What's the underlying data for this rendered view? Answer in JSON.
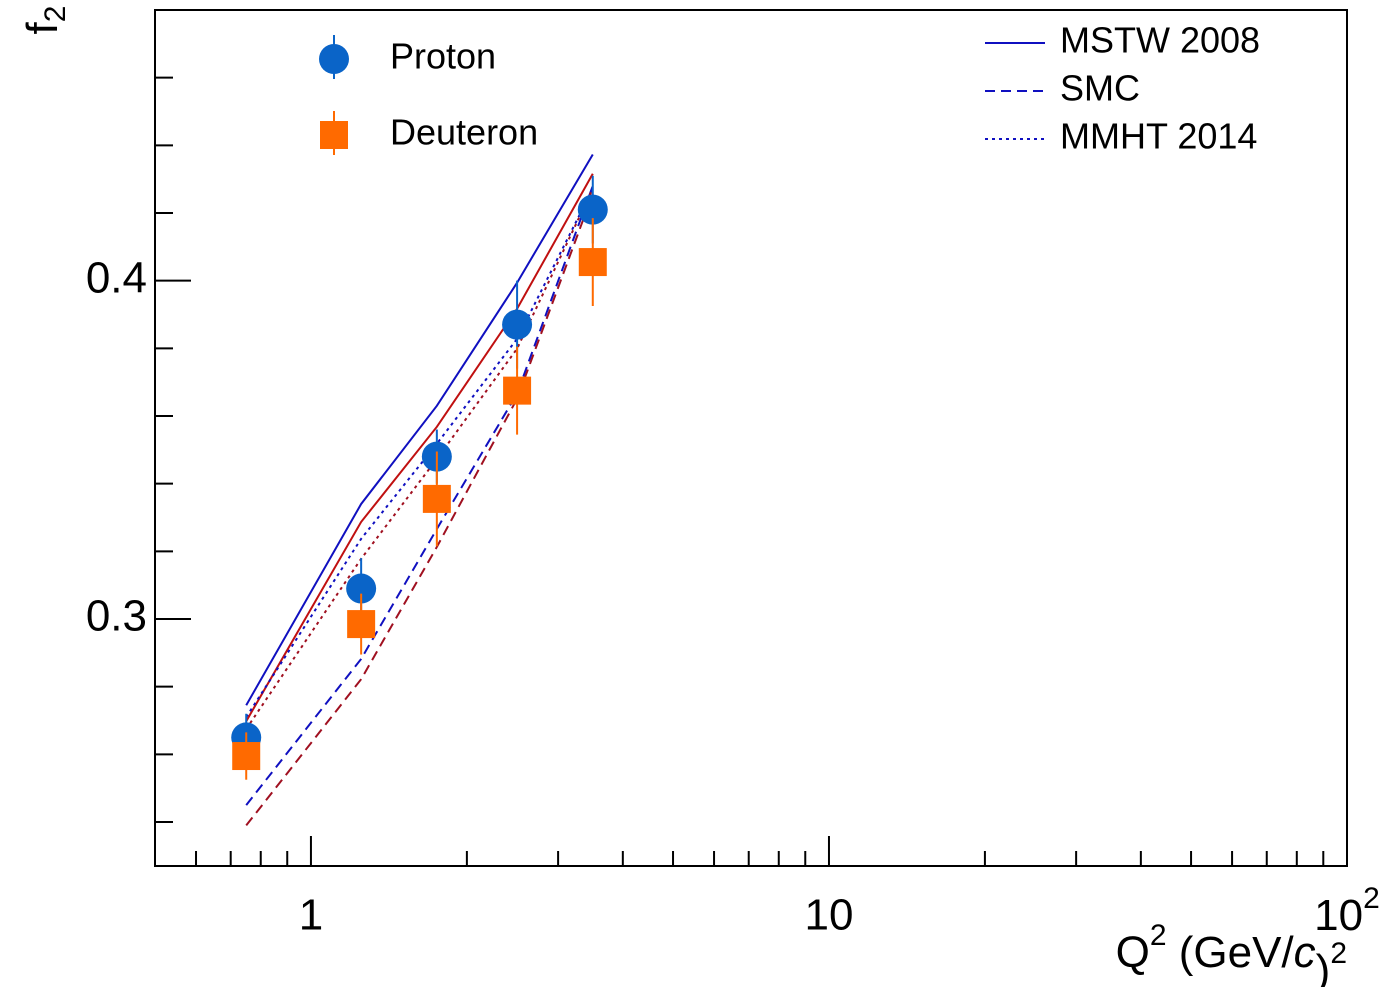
{
  "chart_data": {
    "type": "scatter",
    "ylabel": [
      "f",
      "2"
    ],
    "xlabel": [
      "Q",
      "2",
      " (GeV/",
      "c",
      ")",
      "2"
    ],
    "xscale": "log",
    "xlim": [
      0.5,
      100
    ],
    "xticks": [
      1,
      10,
      {
        "value": 100,
        "label": [
          "10",
          "2"
        ]
      }
    ],
    "xminorticks": [
      0.6,
      0.7,
      0.8,
      0.9,
      2,
      3,
      4,
      5,
      6,
      7,
      8,
      9,
      20,
      30,
      40,
      50,
      60,
      70,
      80,
      90
    ],
    "ylim": [
      0.227,
      0.48
    ],
    "yticks": [
      0.3,
      0.4
    ],
    "yminorticks": [
      0.24,
      0.26,
      0.28,
      0.32,
      0.34,
      0.36,
      0.38,
      0.42,
      0.44,
      0.46
    ],
    "x": [
      0.75,
      1.25,
      1.75,
      2.5,
      3.5
    ],
    "series": [
      {
        "name": "Proton",
        "style": "markers",
        "marker": "circle",
        "color": "#0a64c8",
        "values": [
          0.265,
          0.309,
          0.348,
          0.387,
          0.421
        ],
        "errors": [
          0.007,
          0.009,
          0.008,
          0.013,
          0.01
        ]
      },
      {
        "name": "Deuteron",
        "style": "markers",
        "marker": "square",
        "color": "#ff6a00",
        "values": [
          0.2595,
          0.2985,
          0.3355,
          0.3675,
          0.4055
        ],
        "errors": [
          0.007,
          0.009,
          0.014,
          0.013,
          0.013
        ]
      },
      {
        "name": "MSTW 2008",
        "style": "line",
        "dash": "solid",
        "color": "#1010c0",
        "values": [
          0.2745,
          0.334,
          0.363,
          0.3994,
          0.4373
        ]
      },
      {
        "style": "line",
        "dash": "solid",
        "color": "#c01010",
        "values": [
          0.2698,
          0.3287,
          0.3568,
          0.3917,
          0.4316
        ]
      },
      {
        "name": "SMC",
        "style": "line",
        "dash": "dashed",
        "color": "#1010c0",
        "values": [
          0.245,
          0.2882,
          0.3266,
          0.3666,
          0.428
        ]
      },
      {
        "style": "line",
        "dash": "dashed",
        "color": "#a01020",
        "values": [
          0.239,
          0.2822,
          0.3213,
          0.3651,
          0.4257
        ]
      },
      {
        "name": "MMHT 2014",
        "style": "line",
        "dash": "dotted",
        "color": "#1010c0",
        "values": [
          0.271,
          0.3237,
          0.3518,
          0.3828,
          0.4272
        ]
      },
      {
        "style": "line",
        "dash": "dotted",
        "color": "#a01020",
        "values": [
          0.2675,
          0.3178,
          0.3473,
          0.3799,
          0.4272
        ]
      }
    ]
  }
}
